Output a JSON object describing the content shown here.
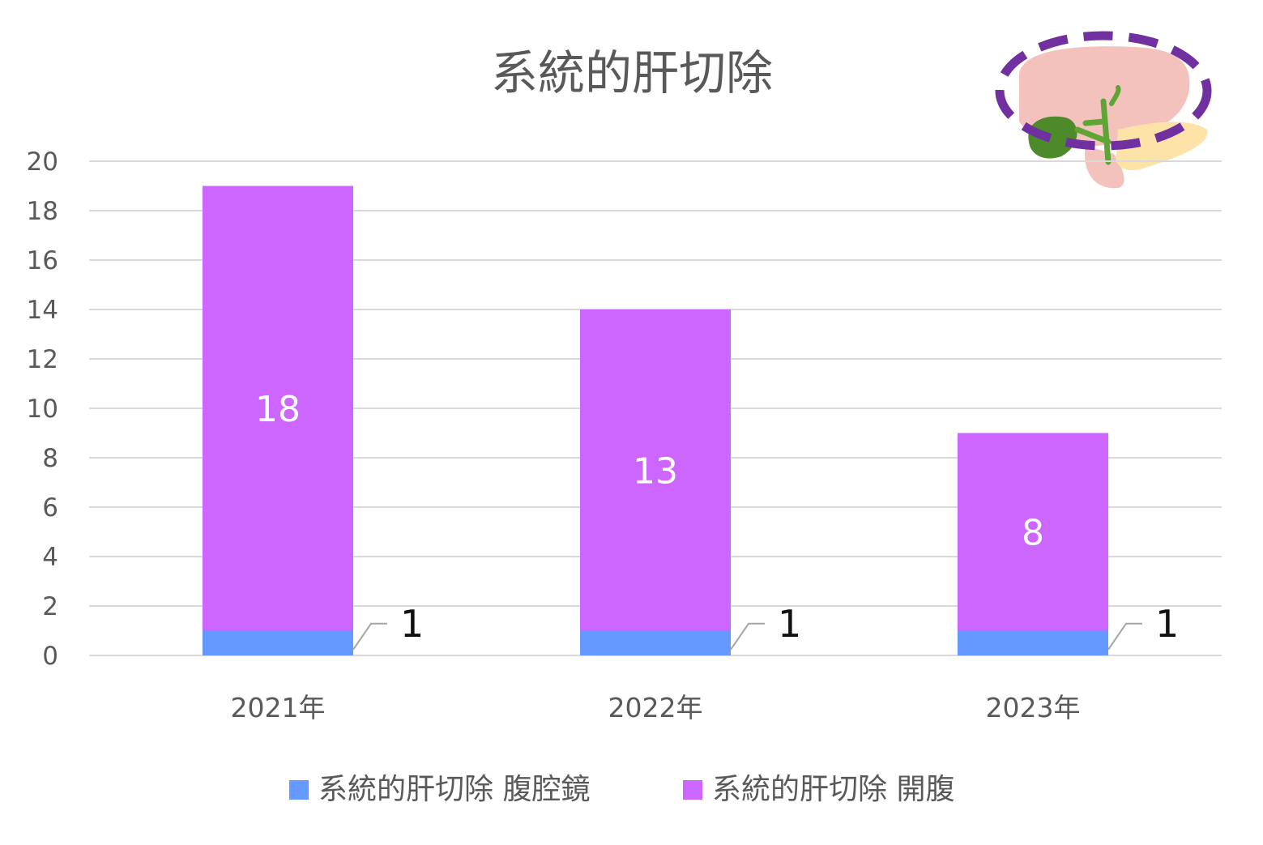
{
  "chart_data": {
    "type": "bar",
    "stacked": true,
    "title": "系統的肝切除",
    "categories": [
      "2021年",
      "2022年",
      "2023年"
    ],
    "series": [
      {
        "name": "系統的肝切除 腹腔鏡",
        "values": [
          1,
          1,
          1
        ],
        "color": "#6699ff"
      },
      {
        "name": "系統的肝切除 開腹",
        "values": [
          18,
          13,
          8
        ],
        "color": "#cc66ff"
      }
    ],
    "yticks": [
      "0",
      "2",
      "4",
      "6",
      "8",
      "10",
      "12",
      "14",
      "16",
      "18",
      "20"
    ],
    "ylim": [
      0,
      20
    ],
    "grid": true,
    "legend": "bottom",
    "data_labels": [
      {
        "series": 0,
        "values": [
          "1",
          "1",
          "1"
        ],
        "position": "outside-right"
      },
      {
        "series": 1,
        "values": [
          "18",
          "13",
          "8"
        ],
        "position": "center"
      }
    ],
    "illustration": "liver-gallbladder-pancreas-icon",
    "illustration_highlight_color": "#7030a0"
  }
}
